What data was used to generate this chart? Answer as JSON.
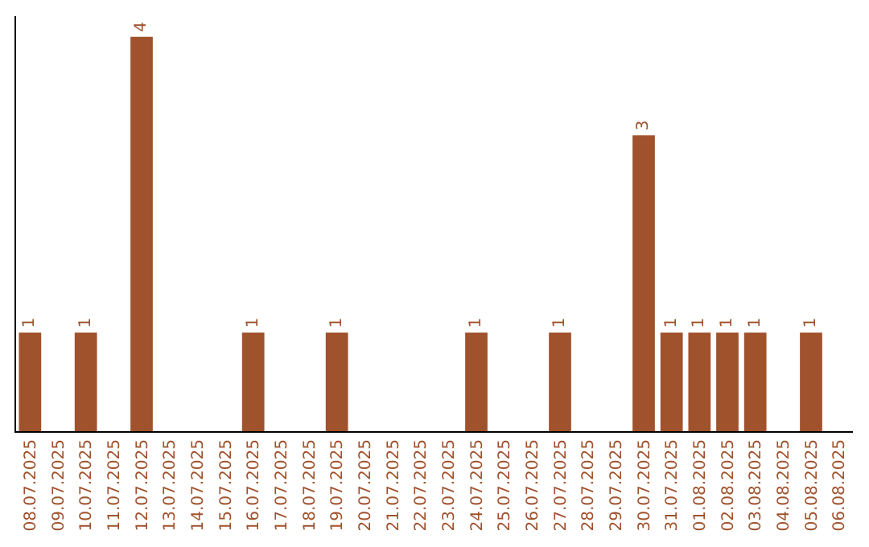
{
  "chart_data": {
    "type": "bar",
    "categories": [
      "08.07.2025",
      "09.07.2025",
      "10.07.2025",
      "11.07.2025",
      "12.07.2025",
      "13.07.2025",
      "14.07.2025",
      "15.07.2025",
      "16.07.2025",
      "17.07.2025",
      "18.07.2025",
      "19.07.2025",
      "20.07.2025",
      "21.07.2025",
      "22.07.2025",
      "23.07.2025",
      "24.07.2025",
      "25.07.2025",
      "26.07.2025",
      "27.07.2025",
      "28.07.2025",
      "29.07.2025",
      "30.07.2025",
      "31.07.2025",
      "01.08.2025",
      "02.08.2025",
      "03.08.2025",
      "04.08.2025",
      "05.08.2025",
      "06.08.2025"
    ],
    "values": [
      1,
      null,
      1,
      null,
      4,
      null,
      null,
      null,
      1,
      null,
      null,
      1,
      null,
      null,
      null,
      null,
      1,
      null,
      null,
      1,
      null,
      null,
      3,
      1,
      1,
      1,
      1,
      null,
      1,
      null
    ],
    "color": "#a0522d",
    "data_labels": true,
    "tick_labels": "x"
  }
}
